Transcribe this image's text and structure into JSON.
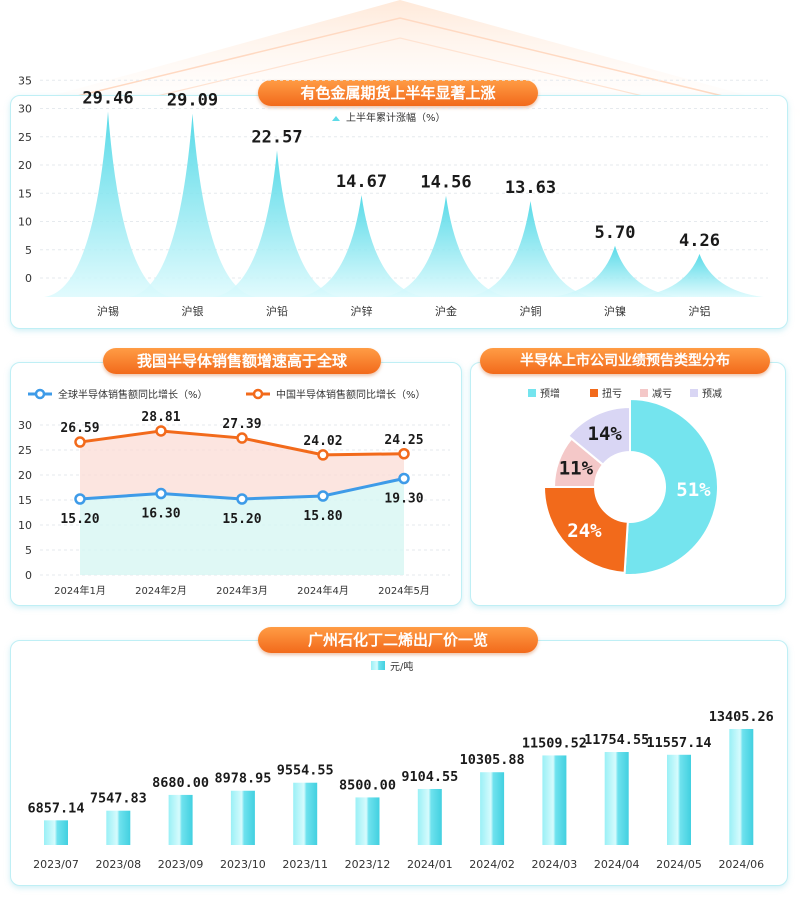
{
  "colors": {
    "teal": "#74e4ee",
    "teal_dark": "#3ac9da",
    "orange": "#f26a1b",
    "blue": "#3e9be8",
    "pink": "#f4c8c8",
    "lavender": "#d9d6f4"
  },
  "chart_data": [
    {
      "type": "area",
      "title": "有色金属期货上半年显著上涨",
      "legend": "上半年累计涨幅（%）",
      "categories": [
        "沪锡",
        "沪银",
        "沪铅",
        "沪锌",
        "沪金",
        "沪铜",
        "沪镍",
        "沪铝"
      ],
      "values": [
        29.46,
        29.09,
        22.57,
        14.67,
        14.56,
        13.63,
        5.7,
        4.26
      ],
      "labels": [
        "29.46",
        "29.09",
        "22.57",
        "14.67",
        "14.56",
        "13.63",
        "5.70",
        "4.26"
      ],
      "yticks": [
        "0",
        "5",
        "10",
        "15",
        "20",
        "25",
        "30",
        "35"
      ],
      "ylim": [
        0,
        35
      ]
    },
    {
      "type": "line",
      "title": "我国半导体销售额增速高于全球",
      "categories": [
        "2024年1月",
        "2024年2月",
        "2024年3月",
        "2024年4月",
        "2024年5月"
      ],
      "series": [
        {
          "name": "全球半导体销售额同比增长（%）",
          "values": [
            15.2,
            16.3,
            15.2,
            15.8,
            19.3
          ],
          "labels": [
            "15.20",
            "16.30",
            "15.20",
            "15.80",
            "19.30"
          ]
        },
        {
          "name": "中国半导体销售额同比增长（%）",
          "values": [
            26.59,
            28.81,
            27.39,
            24.02,
            24.25
          ],
          "labels": [
            "26.59",
            "28.81",
            "27.39",
            "24.02",
            "24.25"
          ]
        }
      ],
      "yticks": [
        "0",
        "5",
        "10",
        "15",
        "20",
        "25",
        "30"
      ],
      "ylim": [
        0,
        30
      ]
    },
    {
      "type": "pie",
      "title": "半导体上市公司业绩预告类型分布",
      "categories": [
        "预增",
        "扭亏",
        "减亏",
        "预减"
      ],
      "values": [
        51,
        24,
        11,
        14
      ],
      "labels": [
        "51%",
        "24%",
        "11%",
        "14%"
      ]
    },
    {
      "type": "bar",
      "title": "广州石化丁二烯出厂价一览",
      "legend": "元/吨",
      "categories": [
        "2023/07",
        "2023/08",
        "2023/09",
        "2023/10",
        "2023/11",
        "2023/12",
        "2024/01",
        "2024/02",
        "2024/03",
        "2024/04",
        "2024/05",
        "2024/06"
      ],
      "values": [
        6857.14,
        7547.83,
        8680.0,
        8978.95,
        9554.55,
        8500.0,
        9104.55,
        10305.88,
        11509.52,
        11754.55,
        11557.14,
        13405.26
      ],
      "labels": [
        "6857.14",
        "7547.83",
        "8680.00",
        "8978.95",
        "9554.55",
        "8500.00",
        "9104.55",
        "10305.88",
        "11509.52",
        "11754.55",
        "11557.14",
        "13405.26"
      ]
    }
  ]
}
